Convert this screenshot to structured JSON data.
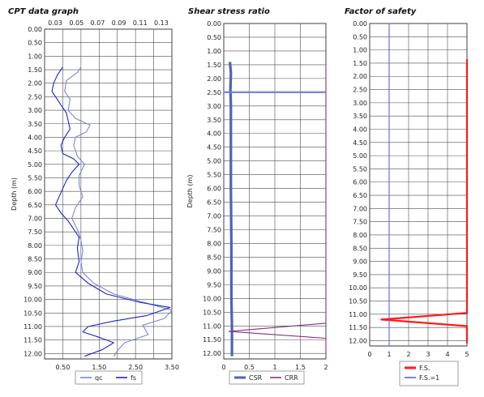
{
  "chart_data": [
    {
      "type": "line",
      "title": "CPT data graph",
      "ylabel": "Depth (m)",
      "y_ticks": [
        "0.00",
        "0.50",
        "1.00",
        "1.50",
        "2.00",
        "2.50",
        "3.00",
        "3.50",
        "4.00",
        "4.50",
        "5.00",
        "5.50",
        "6.00",
        "6.50",
        "7.00",
        "7.50",
        "8.00",
        "8.50",
        "9.00",
        "9.50",
        "10.00",
        "10.50",
        "11.00",
        "11.50",
        "12.00"
      ],
      "ylim": [
        0,
        12.2
      ],
      "x_bottom_ticks": [
        "0.50",
        "1.50",
        "2.50",
        "3.50"
      ],
      "xlim_bottom": [
        0,
        3.5
      ],
      "x_top_ticks": [
        "0.03",
        "0.05",
        "0.07",
        "0.09",
        "0.11",
        "0.13"
      ],
      "xlim_top": [
        0.02,
        0.14
      ],
      "grid": true,
      "legend_position": "bottom",
      "series": [
        {
          "name": "qc",
          "axis": "bottom",
          "color": "#7b86d8",
          "points": [
            [
              1.0,
              1.4
            ],
            [
              0.9,
              1.6
            ],
            [
              0.6,
              1.9
            ],
            [
              0.55,
              2.3
            ],
            [
              0.7,
              2.6
            ],
            [
              0.65,
              3.0
            ],
            [
              0.85,
              3.3
            ],
            [
              1.25,
              3.55
            ],
            [
              1.15,
              3.8
            ],
            [
              0.85,
              4.0
            ],
            [
              0.8,
              4.3
            ],
            [
              0.9,
              4.7
            ],
            [
              1.1,
              5.0
            ],
            [
              0.95,
              5.4
            ],
            [
              0.95,
              5.8
            ],
            [
              1.05,
              6.2
            ],
            [
              0.85,
              6.6
            ],
            [
              0.75,
              7.0
            ],
            [
              0.9,
              7.4
            ],
            [
              1.0,
              7.8
            ],
            [
              1.05,
              8.2
            ],
            [
              1.0,
              8.6
            ],
            [
              1.05,
              9.0
            ],
            [
              1.35,
              9.4
            ],
            [
              1.9,
              9.8
            ],
            [
              2.7,
              10.1
            ],
            [
              3.5,
              10.4
            ],
            [
              3.3,
              10.7
            ],
            [
              2.7,
              10.95
            ],
            [
              2.85,
              11.3
            ],
            [
              2.2,
              11.6
            ],
            [
              2.0,
              11.9
            ],
            [
              1.9,
              12.1
            ]
          ]
        },
        {
          "name": "fs",
          "axis": "bottom",
          "color": "#1a26c9",
          "points": [
            [
              0.5,
              1.4
            ],
            [
              0.35,
              1.7
            ],
            [
              0.25,
              2.0
            ],
            [
              0.2,
              2.3
            ],
            [
              0.4,
              2.7
            ],
            [
              0.6,
              3.1
            ],
            [
              0.65,
              3.4
            ],
            [
              0.7,
              3.7
            ],
            [
              0.55,
              4.0
            ],
            [
              0.45,
              4.3
            ],
            [
              0.5,
              4.6
            ],
            [
              0.8,
              4.8
            ],
            [
              0.95,
              5.0
            ],
            [
              0.75,
              5.3
            ],
            [
              0.6,
              5.6
            ],
            [
              0.5,
              5.9
            ],
            [
              0.4,
              6.2
            ],
            [
              0.3,
              6.5
            ],
            [
              0.45,
              6.8
            ],
            [
              0.65,
              7.1
            ],
            [
              0.8,
              7.4
            ],
            [
              0.95,
              7.7
            ],
            [
              0.9,
              8.1
            ],
            [
              0.95,
              8.6
            ],
            [
              0.85,
              9.0
            ],
            [
              1.2,
              9.4
            ],
            [
              1.7,
              9.8
            ],
            [
              2.6,
              10.1
            ],
            [
              3.45,
              10.3
            ],
            [
              2.8,
              10.6
            ],
            [
              1.9,
              10.8
            ],
            [
              1.2,
              11.0
            ],
            [
              1.05,
              11.2
            ],
            [
              1.5,
              11.4
            ],
            [
              1.9,
              11.6
            ],
            [
              1.6,
              11.85
            ],
            [
              1.1,
              12.1
            ]
          ]
        }
      ]
    },
    {
      "type": "line",
      "title": "Shear stress ratio",
      "ylabel": "Depth (m)",
      "y_ticks": [
        "0.00",
        "0.50",
        "1.00",
        "1.50",
        "2.00",
        "2.50",
        "3.00",
        "3.50",
        "4.00",
        "4.50",
        "5.00",
        "5.50",
        "6.00",
        "6.50",
        "7.00",
        "7.50",
        "8.00",
        "8.50",
        "9.00",
        "9.50",
        "10.00",
        "10.50",
        "11.00",
        "11.50",
        "12.00"
      ],
      "ylim": [
        0,
        12.2
      ],
      "x_ticks": [
        "0",
        "0.5",
        "1",
        "1.5",
        "2"
      ],
      "xlim": [
        0,
        2
      ],
      "grid": true,
      "legend_position": "bottom",
      "series": [
        {
          "name": "CSR",
          "color": "#4a64b8",
          "points": [
            [
              0.12,
              1.4
            ],
            [
              0.14,
              1.8
            ],
            [
              0.13,
              2.4
            ],
            [
              0.14,
              3.0
            ],
            [
              0.14,
              4.0
            ],
            [
              0.14,
              6.0
            ],
            [
              0.15,
              8.0
            ],
            [
              0.15,
              10.0
            ],
            [
              0.16,
              11.0
            ],
            [
              0.16,
              12.1
            ]
          ]
        },
        {
          "name": "CRR",
          "color": "#8a2f86",
          "points": [
            [
              2.0,
              1.4
            ],
            [
              2.0,
              2.5
            ],
            [
              2.0,
              10.9
            ],
            [
              0.1,
              11.2
            ],
            [
              2.0,
              11.45
            ],
            [
              2.0,
              12.1
            ]
          ]
        },
        {
          "name": "",
          "color": "#6d7de0",
          "points": [
            [
              0.0,
              2.5
            ],
            [
              2.0,
              2.5
            ]
          ]
        }
      ]
    },
    {
      "type": "line",
      "title": "Factor of safety",
      "y_ticks": [
        "0.00",
        "0.50",
        "1.00",
        "1.50",
        "2.00",
        "2.50",
        "3.00",
        "3.50",
        "4.00",
        "4.50",
        "5.00",
        "5.50",
        "6.00",
        "6.50",
        "7.00",
        "7.50",
        "8.00",
        "8.50",
        "9.00",
        "9.50",
        "10.00",
        "10.50",
        "11.00",
        "11.50",
        "12.00"
      ],
      "ylim": [
        0,
        12.2
      ],
      "x_ticks": [
        "0",
        "1",
        "2",
        "3",
        "4",
        "5"
      ],
      "xlim": [
        0,
        5
      ],
      "grid": true,
      "legend_position": "bottom",
      "series": [
        {
          "name": "F.S.",
          "color": "#ff1a1a",
          "points": [
            [
              5.0,
              1.35
            ],
            [
              5.0,
              10.95
            ],
            [
              0.6,
              11.2
            ],
            [
              5.0,
              11.45
            ],
            [
              5.0,
              12.1
            ]
          ]
        },
        {
          "name": "F.S.=1",
          "color": "#5a66d8",
          "points": [
            [
              1.0,
              0.0
            ],
            [
              1.0,
              12.2
            ]
          ]
        }
      ]
    }
  ]
}
